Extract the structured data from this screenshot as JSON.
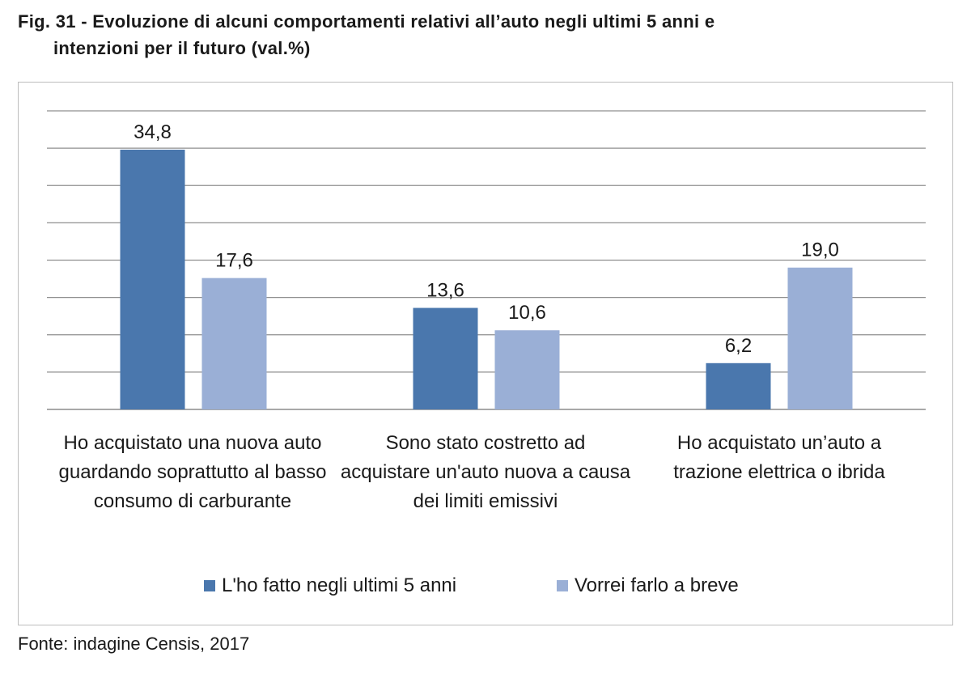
{
  "figure": {
    "title_line1": "Fig. 31 - Evoluzione di alcuni comportamenti relativi all’auto negli ultimi 5 anni e",
    "title_line2": "intenzioni per il futuro (val.%)",
    "source": "Fonte: indagine Censis, 2017"
  },
  "chart_data": {
    "type": "bar",
    "categories": [
      "Ho acquistato una nuova auto guardando soprattutto al basso consumo di carburante",
      "Sono stato costretto ad acquistare un'auto nuova a causa dei limiti emissivi",
      "Ho acquistato un’auto a trazione elettrica o ibrida"
    ],
    "series": [
      {
        "name": "L'ho fatto negli ultimi 5 anni",
        "values": [
          34.8,
          13.6,
          6.2
        ],
        "labels": [
          "34,8",
          "13,6",
          "6,2"
        ],
        "color": "#4a77ad"
      },
      {
        "name": "Vorrei farlo a breve",
        "values": [
          17.6,
          10.6,
          19.0
        ],
        "labels": [
          "17,6",
          "10,6",
          "19,0"
        ],
        "color": "#9aafd6"
      }
    ],
    "ylim": [
      0,
      40
    ],
    "grid": true,
    "legend": "bottom"
  }
}
